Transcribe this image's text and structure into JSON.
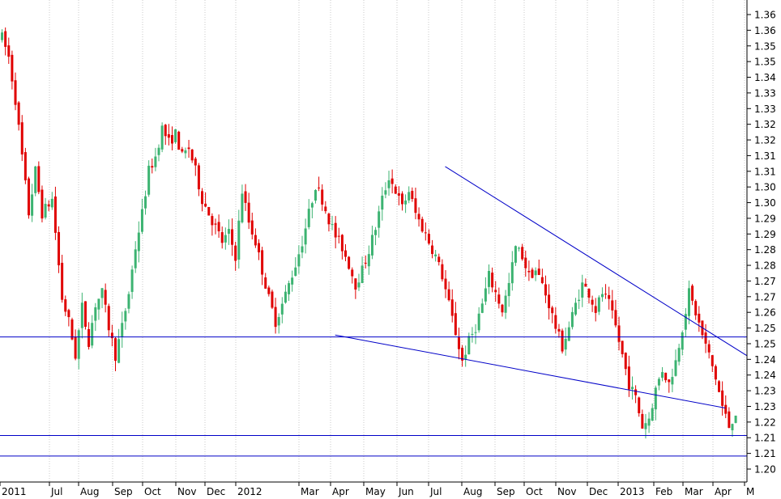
{
  "chart_data": {
    "type": "candlestick",
    "title": "",
    "xlabel": "",
    "ylabel": "",
    "y_axis_position": "right",
    "grid": true,
    "ylim": [
      1.195,
      1.365
    ],
    "y_ticks": [
      "1.20",
      "1.21",
      "1.21",
      "1.22",
      "1.23",
      "1.23",
      "1.24",
      "1.24",
      "1.25",
      "1.25",
      "1.26",
      "1.27",
      "1.27",
      "1.28",
      "1.28",
      "1.29",
      "1.29",
      "1.30",
      "1.30",
      "1.31",
      "1.31",
      "1.32",
      "1.32",
      "1.33",
      "1.33",
      "1.34",
      "1.35",
      "1.35",
      "1.36",
      "1.36"
    ],
    "x_labels": [
      "2011",
      "Jul",
      "Aug",
      "Sep",
      "Oct",
      "Nov",
      "Dec",
      "2012",
      "Mar",
      "Apr",
      "May",
      "Jun",
      "Jul",
      "Aug",
      "Sep",
      "Oct",
      "Nov",
      "Dec",
      "2013",
      "Feb",
      "Mar",
      "Apr",
      "M"
    ],
    "price_path": [
      [
        0,
        1.352
      ],
      [
        2,
        1.345
      ],
      [
        4,
        1.33
      ],
      [
        6,
        1.31
      ],
      [
        8,
        1.29
      ],
      [
        10,
        1.305
      ],
      [
        12,
        1.29
      ],
      [
        15,
        1.295
      ],
      [
        18,
        1.26
      ],
      [
        20,
        1.252
      ],
      [
        22,
        1.24
      ],
      [
        24,
        1.257
      ],
      [
        26,
        1.245
      ],
      [
        28,
        1.258
      ],
      [
        30,
        1.262
      ],
      [
        32,
        1.25
      ],
      [
        34,
        1.24
      ],
      [
        36,
        1.25
      ],
      [
        38,
        1.262
      ],
      [
        40,
        1.278
      ],
      [
        42,
        1.29
      ],
      [
        44,
        1.305
      ],
      [
        46,
        1.31
      ],
      [
        48,
        1.32
      ],
      [
        50,
        1.315
      ],
      [
        52,
        1.318
      ],
      [
        54,
        1.31
      ],
      [
        56,
        1.313
      ],
      [
        58,
        1.305
      ],
      [
        60,
        1.295
      ],
      [
        62,
        1.29
      ],
      [
        64,
        1.285
      ],
      [
        66,
        1.28
      ],
      [
        68,
        1.283
      ],
      [
        70,
        1.275
      ],
      [
        72,
        1.298
      ],
      [
        74,
        1.287
      ],
      [
        76,
        1.28
      ],
      [
        78,
        1.27
      ],
      [
        80,
        1.26
      ],
      [
        82,
        1.252
      ],
      [
        84,
        1.258
      ],
      [
        86,
        1.265
      ],
      [
        88,
        1.272
      ],
      [
        90,
        1.28
      ],
      [
        92,
        1.29
      ],
      [
        94,
        1.3
      ],
      [
        96,
        1.295
      ],
      [
        98,
        1.288
      ],
      [
        100,
        1.282
      ],
      [
        102,
        1.278
      ],
      [
        104,
        1.272
      ],
      [
        106,
        1.265
      ],
      [
        108,
        1.27
      ],
      [
        110,
        1.277
      ],
      [
        112,
        1.285
      ],
      [
        114,
        1.295
      ],
      [
        116,
        1.303
      ],
      [
        118,
        1.298
      ],
      [
        120,
        1.292
      ],
      [
        122,
        1.298
      ],
      [
        124,
        1.29
      ],
      [
        126,
        1.285
      ],
      [
        128,
        1.28
      ],
      [
        130,
        1.275
      ],
      [
        132,
        1.268
      ],
      [
        134,
        1.258
      ],
      [
        136,
        1.248
      ],
      [
        138,
        1.238
      ],
      [
        140,
        1.245
      ],
      [
        142,
        1.25
      ],
      [
        144,
        1.258
      ],
      [
        146,
        1.268
      ],
      [
        148,
        1.262
      ],
      [
        150,
        1.256
      ],
      [
        152,
        1.265
      ],
      [
        154,
        1.278
      ],
      [
        156,
        1.275
      ],
      [
        158,
        1.268
      ],
      [
        160,
        1.27
      ],
      [
        162,
        1.265
      ],
      [
        164,
        1.258
      ],
      [
        166,
        1.25
      ],
      [
        168,
        1.243
      ],
      [
        170,
        1.25
      ],
      [
        172,
        1.258
      ],
      [
        174,
        1.265
      ],
      [
        176,
        1.262
      ],
      [
        178,
        1.256
      ],
      [
        180,
        1.262
      ],
      [
        182,
        1.258
      ],
      [
        184,
        1.25
      ],
      [
        186,
        1.24
      ],
      [
        188,
        1.23
      ],
      [
        190,
        1.225
      ],
      [
        192,
        1.215
      ],
      [
        194,
        1.218
      ],
      [
        196,
        1.228
      ],
      [
        198,
        1.235
      ],
      [
        200,
        1.23
      ],
      [
        202,
        1.238
      ],
      [
        204,
        1.25
      ],
      [
        206,
        1.262
      ],
      [
        208,
        1.255
      ],
      [
        210,
        1.247
      ],
      [
        212,
        1.24
      ],
      [
        214,
        1.232
      ],
      [
        216,
        1.222
      ],
      [
        218,
        1.215
      ],
      [
        220,
        1.22
      ]
    ],
    "lines": [
      {
        "name": "horizontal-support-upper",
        "x": [
          -2,
          224
        ],
        "y": [
          1.2465,
          1.2465
        ]
      },
      {
        "name": "horizontal-support-middle",
        "x": [
          -2,
          224
        ],
        "y": [
          1.2118,
          1.2118
        ]
      },
      {
        "name": "horizontal-support-lower",
        "x": [
          -2,
          224
        ],
        "y": [
          1.2046,
          1.2046
        ]
      },
      {
        "name": "downtrend-upper",
        "x": [
          133,
          224
        ],
        "y": [
          1.3065,
          1.2399
        ]
      },
      {
        "name": "downtrend-lower",
        "x": [
          100,
          217
        ],
        "y": [
          1.2472,
          1.2215
        ]
      }
    ],
    "colors": {
      "up_candle": "#3cb371",
      "down_candle": "#e00000",
      "trend_line": "#0000c8",
      "grid": "#c8c8c8"
    }
  }
}
